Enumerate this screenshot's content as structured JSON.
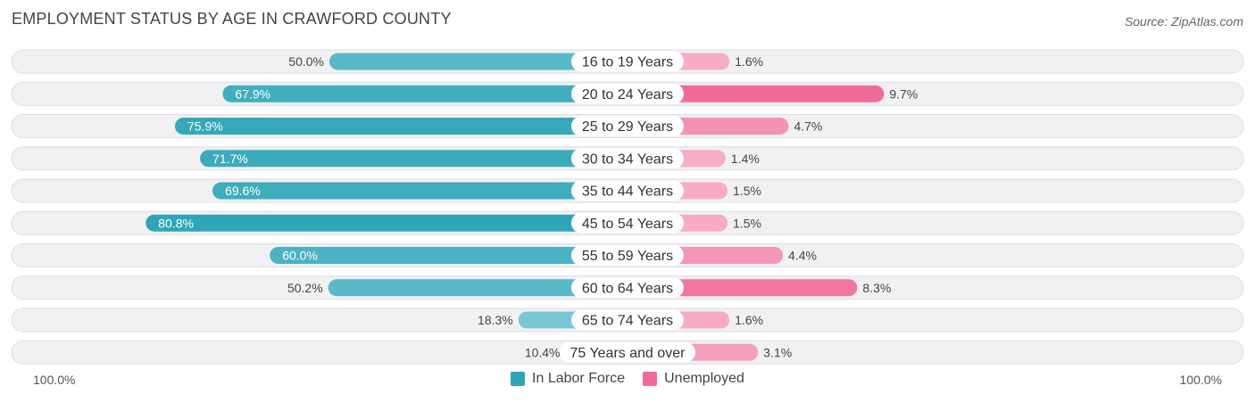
{
  "title": "EMPLOYMENT STATUS BY AGE IN CRAWFORD COUNTY",
  "source": "Source: ZipAtlas.com",
  "axis_left_label": "100.0%",
  "axis_right_label": "100.0%",
  "legend": {
    "labor": {
      "label": "In Labor Force",
      "color": "#2fa6b8"
    },
    "unemployed": {
      "label": "Unemployed",
      "color": "#f06c96"
    }
  },
  "chart_data": {
    "type": "bar",
    "orientation": "diverging-horizontal",
    "title": "EMPLOYMENT STATUS BY AGE IN CRAWFORD COUNTY",
    "categories": [
      "16 to 19 Years",
      "20 to 24 Years",
      "25 to 29 Years",
      "30 to 34 Years",
      "35 to 44 Years",
      "45 to 54 Years",
      "55 to 59 Years",
      "60 to 64 Years",
      "65 to 74 Years",
      "75 Years and over"
    ],
    "series": [
      {
        "name": "In Labor Force",
        "values": [
          50.0,
          67.9,
          75.9,
          71.7,
          69.6,
          80.8,
          60.0,
          50.2,
          18.3,
          10.4
        ],
        "labels": [
          "50.0%",
          "67.9%",
          "75.9%",
          "71.7%",
          "69.6%",
          "80.8%",
          "60.0%",
          "50.2%",
          "18.3%",
          "10.4%"
        ]
      },
      {
        "name": "Unemployed",
        "values": [
          1.6,
          9.7,
          4.7,
          1.4,
          1.5,
          1.5,
          4.4,
          8.3,
          1.6,
          3.1
        ],
        "labels": [
          "1.6%",
          "9.7%",
          "4.7%",
          "1.4%",
          "1.5%",
          "1.5%",
          "4.4%",
          "8.3%",
          "1.6%",
          "3.1%"
        ]
      }
    ],
    "xlim_left": [
      0,
      100
    ],
    "xlim_right": [
      0,
      100
    ],
    "unit": "%"
  }
}
